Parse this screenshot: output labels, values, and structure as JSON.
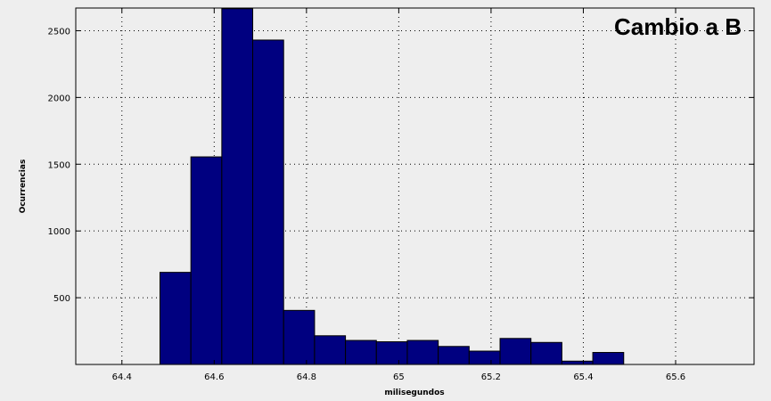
{
  "chart_data": {
    "type": "bar",
    "title": "Cambio a B",
    "xlabel": "milisegundos",
    "ylabel": "Ocurrencias",
    "xlim": [
      64.3,
      65.77
    ],
    "ylim": [
      0,
      2670
    ],
    "grid": true,
    "bar_color": "#000080",
    "bin_width": 0.067,
    "x": [
      64.516,
      64.583,
      64.65,
      64.717,
      64.784,
      64.851,
      64.918,
      64.985,
      65.052,
      65.119,
      65.186,
      65.253,
      65.32,
      65.387,
      65.454
    ],
    "values": [
      690,
      1555,
      2665,
      2430,
      405,
      215,
      180,
      170,
      180,
      135,
      100,
      195,
      165,
      25,
      90
    ],
    "x_ticks": [
      64.4,
      64.6,
      64.8,
      65,
      65.2,
      65.4,
      65.6
    ],
    "x_tick_labels": [
      "64.4",
      "64.6",
      "64.8",
      "65",
      "65.2",
      "65.4",
      "65.6"
    ],
    "y_ticks": [
      500,
      1000,
      1500,
      2000,
      2500
    ],
    "y_tick_labels": [
      "500",
      "1000",
      "1500",
      "2000",
      "2500"
    ]
  }
}
